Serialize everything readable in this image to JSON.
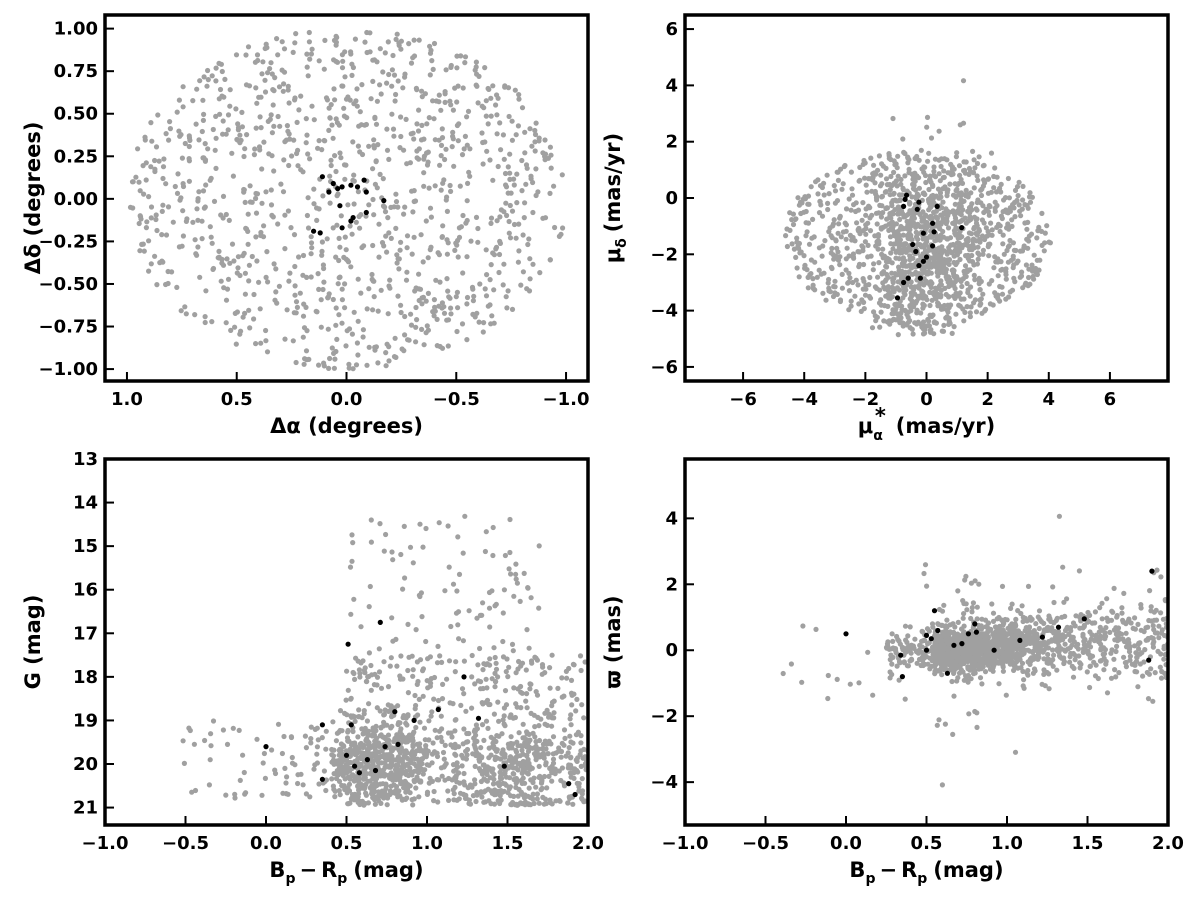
{
  "chart_data": [
    {
      "id": "sky",
      "type": "scatter",
      "xlabel": "Δα (degrees)",
      "ylabel": "Δδ (degrees)",
      "xlim": [
        1.1,
        -1.1
      ],
      "ylim": [
        -1.07,
        1.08
      ],
      "x_reversed": true,
      "xticks": [
        1.0,
        0.5,
        0.0,
        -0.5,
        -1.0
      ],
      "xtick_labels": [
        "1.0",
        "0.5",
        "0.0",
        "−0.5",
        "−1.0"
      ],
      "yticks": [
        -1.0,
        -0.75,
        -0.5,
        -0.25,
        0.0,
        0.25,
        0.5,
        0.75,
        1.0
      ],
      "ytick_labels": [
        "−1.00",
        "−0.75",
        "−0.50",
        "−0.25",
        "0.00",
        "0.25",
        "0.50",
        "0.75",
        "1.00"
      ],
      "series": [
        {
          "role": "field",
          "color": "#a0a0a0",
          "distribution": {
            "shape": "disk",
            "center": [
              0,
              0
            ],
            "radius": 1.0,
            "count": 1100
          }
        },
        {
          "role": "members",
          "color": "#000000",
          "points": [
            [
              0.11,
              0.13
            ],
            [
              0.08,
              0.04
            ],
            [
              0.06,
              0.09
            ],
            [
              0.04,
              0.06
            ],
            [
              0.02,
              0.07
            ],
            [
              -0.02,
              0.08
            ],
            [
              -0.05,
              0.07
            ],
            [
              -0.08,
              0.11
            ],
            [
              -0.09,
              0.04
            ],
            [
              0.03,
              -0.04
            ],
            [
              -0.03,
              -0.11
            ],
            [
              -0.02,
              -0.13
            ],
            [
              0.02,
              -0.17
            ],
            [
              0.15,
              -0.19
            ],
            [
              0.12,
              -0.2
            ],
            [
              -0.09,
              -0.08
            ],
            [
              -0.17,
              -0.01
            ]
          ]
        }
      ]
    },
    {
      "id": "pm",
      "type": "scatter",
      "xlabel_main": "μ",
      "xlabel_sub": "α",
      "xlabel_sup": "*",
      "xlabel_rest": "(mas/yr)",
      "ylabel_main": "μ",
      "ylabel_sub": "δ",
      "ylabel_rest": "(mas/yr)",
      "xlim": [
        -7.9,
        7.9
      ],
      "ylim": [
        -6.5,
        6.5
      ],
      "xticks": [
        -6,
        -4,
        -2,
        0,
        2,
        4,
        6
      ],
      "xtick_labels": [
        "−6",
        "−4",
        "−2",
        "0",
        "2",
        "4",
        "6"
      ],
      "yticks": [
        -6,
        -4,
        -2,
        0,
        2,
        4,
        6
      ],
      "ytick_labels": [
        "−6",
        "−4",
        "−2",
        "0",
        "2",
        "4",
        "6"
      ],
      "series": [
        {
          "role": "field",
          "color": "#a0a0a0",
          "distribution": {
            "shape": "clustered-disk",
            "center": [
              -0.3,
              -1.4
            ],
            "radius": 4.4,
            "count": 1500
          }
        },
        {
          "role": "members",
          "color": "#000000",
          "points": [
            [
              -0.65,
              0.1
            ],
            [
              -0.7,
              -0.05
            ],
            [
              -0.75,
              -0.3
            ],
            [
              -0.25,
              -0.15
            ],
            [
              -0.3,
              -0.4
            ],
            [
              0.35,
              -0.3
            ],
            [
              -0.1,
              -1.25
            ],
            [
              0.25,
              -1.2
            ],
            [
              0.2,
              -0.9
            ],
            [
              1.15,
              -1.05
            ],
            [
              0.2,
              -1.7
            ],
            [
              -0.45,
              -1.65
            ],
            [
              -0.35,
              -1.9
            ],
            [
              0.0,
              -2.1
            ],
            [
              -0.1,
              -2.25
            ],
            [
              -0.25,
              -2.4
            ],
            [
              -0.6,
              -2.85
            ],
            [
              -0.75,
              -3.0
            ],
            [
              -0.2,
              -2.85
            ],
            [
              -0.95,
              -3.55
            ]
          ]
        }
      ]
    },
    {
      "id": "cmd",
      "type": "scatter",
      "xlabel_main": "B",
      "xlabel_sub": "p",
      "xlabel_minus": "−",
      "xlabel_main2": "R",
      "xlabel_sub2": "p",
      "xlabel_rest": "(mag)",
      "ylabel": "G (mag)",
      "xlim": [
        -1.0,
        2.0
      ],
      "ylim": [
        21.4,
        13.0
      ],
      "y_reversed": true,
      "xticks": [
        -1.0,
        -0.5,
        0.0,
        0.5,
        1.0,
        1.5,
        2.0
      ],
      "xtick_labels": [
        "−1.0",
        "−0.5",
        "0.0",
        "0.5",
        "1.0",
        "1.5",
        "2.0"
      ],
      "yticks": [
        13,
        14,
        15,
        16,
        17,
        18,
        19,
        20,
        21
      ],
      "ytick_labels": [
        "13",
        "14",
        "15",
        "16",
        "17",
        "18",
        "19",
        "20",
        "21"
      ],
      "series": [
        {
          "role": "field",
          "color": "#a0a0a0",
          "distribution": {
            "shape": "cmd",
            "count": 1500
          }
        },
        {
          "role": "members",
          "color": "#000000",
          "points": [
            [
              0.35,
              20.35
            ],
            [
              0.5,
              19.8
            ],
            [
              0.55,
              20.05
            ],
            [
              0.58,
              20.2
            ],
            [
              0.68,
              20.15
            ],
            [
              0.63,
              19.9
            ],
            [
              0.74,
              19.6
            ],
            [
              0.82,
              19.55
            ],
            [
              0.0,
              19.6
            ],
            [
              0.35,
              19.1
            ],
            [
              0.53,
              19.1
            ],
            [
              0.92,
              19.0
            ],
            [
              0.8,
              18.8
            ],
            [
              1.07,
              18.75
            ],
            [
              1.32,
              18.95
            ],
            [
              1.23,
              18.0
            ],
            [
              1.48,
              20.05
            ],
            [
              0.51,
              17.25
            ],
            [
              0.71,
              16.75
            ],
            [
              1.92,
              20.7
            ],
            [
              1.88,
              20.45
            ]
          ]
        }
      ]
    },
    {
      "id": "plx",
      "type": "scatter",
      "xlabel_main": "B",
      "xlabel_sub": "p",
      "xlabel_minus": "−",
      "xlabel_main2": "R",
      "xlabel_sub2": "p",
      "xlabel_rest": "(mag)",
      "ylabel": "ϖ (mas)",
      "xlim": [
        -1.0,
        2.0
      ],
      "ylim": [
        -5.3,
        5.8
      ],
      "xticks": [
        -1.0,
        -0.5,
        0.0,
        0.5,
        1.0,
        1.5,
        2.0
      ],
      "xtick_labels": [
        "−1.0",
        "−0.5",
        "0.0",
        "0.5",
        "1.0",
        "1.5",
        "2.0"
      ],
      "yticks": [
        -4,
        -2,
        0,
        2,
        4
      ],
      "ytick_labels": [
        "−4",
        "−2",
        "0",
        "2",
        "4"
      ],
      "series": [
        {
          "role": "field",
          "color": "#a0a0a0",
          "distribution": {
            "shape": "band",
            "count": 1500
          }
        },
        {
          "role": "members",
          "color": "#000000",
          "points": [
            [
              0.0,
              0.5
            ],
            [
              0.34,
              -0.15
            ],
            [
              0.35,
              -0.8
            ],
            [
              0.5,
              0.45
            ],
            [
              0.55,
              1.2
            ],
            [
              0.57,
              0.6
            ],
            [
              0.5,
              0.0
            ],
            [
              0.53,
              0.35
            ],
            [
              0.63,
              -0.7
            ],
            [
              0.67,
              0.15
            ],
            [
              0.72,
              0.2
            ],
            [
              0.76,
              0.5
            ],
            [
              0.8,
              0.8
            ],
            [
              0.81,
              0.55
            ],
            [
              0.92,
              0.0
            ],
            [
              1.08,
              0.3
            ],
            [
              1.22,
              0.4
            ],
            [
              1.32,
              0.7
            ],
            [
              1.48,
              0.95
            ],
            [
              1.88,
              -0.3
            ],
            [
              1.9,
              2.4
            ]
          ]
        }
      ]
    }
  ]
}
